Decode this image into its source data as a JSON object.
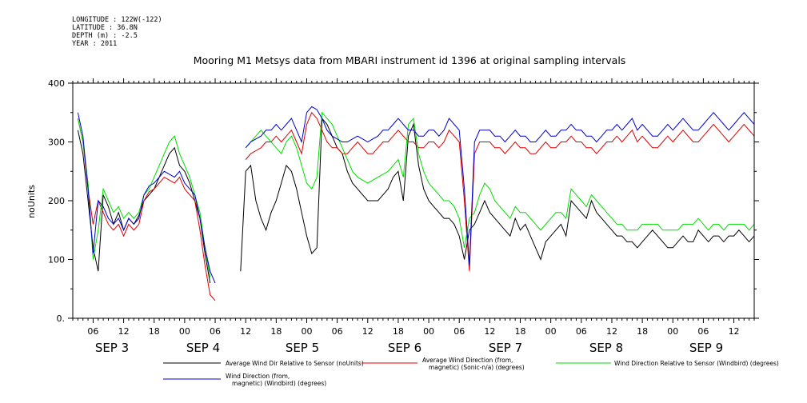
{
  "meta": {
    "longitude": "LONGITUDE : 122W(-122)",
    "latitude": "LATITUDE : 36.8N",
    "depth": "DEPTH (m) : -2.5",
    "year": "YEAR : 2011"
  },
  "chart_data": {
    "type": "line",
    "title": "Mooring M1 Metsys data from MBARI instrument id 1396 at original sampling intervals",
    "ylabel": "noUnits",
    "xlabel": "",
    "ylim": [
      0,
      400
    ],
    "yticks": [
      0,
      100,
      200,
      300,
      400
    ],
    "ytick_labels": [
      "0.",
      "100",
      "200",
      "300",
      "400"
    ],
    "xlim_hours": [
      2,
      136
    ],
    "x_hour_ticks": [
      "06",
      "12",
      "18",
      "00",
      "06",
      "12",
      "18",
      "00",
      "06",
      "12",
      "18",
      "00",
      "06",
      "12",
      "18",
      "00",
      "06",
      "12",
      "18",
      "00",
      "06",
      "12",
      "18",
      "00",
      "06",
      "12",
      "18"
    ],
    "x_day_labels": [
      {
        "label": "SEP  3",
        "hour": 12
      },
      {
        "label": "SEP  4",
        "hour": 36
      },
      {
        "label": "SEP  5",
        "hour": 60
      },
      {
        "label": "SEP  6",
        "hour": 84
      },
      {
        "label": "SEP  7",
        "hour": 108
      },
      {
        "label": "SEP  8",
        "hour": 132
      },
      {
        "label": "SEP  9",
        "hour": 156
      }
    ],
    "series": [
      {
        "name": "Average Wind Dir Relative to Sensor (noUnits)",
        "color": "#000000",
        "x": [
          3,
          4,
          5,
          6,
          7,
          8,
          9,
          10,
          11,
          12,
          13,
          14,
          15,
          16,
          17,
          18,
          19,
          20,
          21,
          22,
          23,
          24,
          25,
          26,
          27,
          28,
          29,
          30,
          31,
          32,
          33,
          34,
          35,
          36,
          37,
          38,
          39,
          40,
          41,
          42,
          43,
          44,
          45,
          46,
          47,
          48,
          49,
          50,
          51,
          52,
          53,
          54,
          55,
          56,
          57,
          58,
          59,
          60,
          61,
          62,
          63,
          64,
          65,
          66,
          67,
          68,
          69,
          70,
          71,
          72,
          73,
          74,
          75,
          76,
          77,
          78,
          79,
          80,
          81,
          82,
          83,
          84,
          85,
          86,
          87,
          88,
          89,
          90,
          91,
          92,
          93,
          94,
          95,
          96,
          97,
          98,
          99,
          100,
          101,
          102,
          103,
          104,
          105,
          106,
          107,
          108,
          109,
          110,
          111,
          112,
          113,
          114,
          115,
          116,
          117,
          118,
          119,
          120,
          121,
          122,
          123,
          124,
          125,
          126,
          127,
          128,
          129,
          130,
          131,
          132,
          133,
          134,
          135,
          136
        ],
        "y": [
          320,
          280,
          200,
          120,
          80,
          210,
          190,
          160,
          180,
          150,
          170,
          160,
          175,
          200,
          210,
          220,
          240,
          260,
          280,
          290,
          260,
          250,
          230,
          200,
          170,
          110,
          60,
          null,
          null,
          null,
          null,
          null,
          80,
          250,
          260,
          200,
          170,
          150,
          180,
          200,
          230,
          260,
          250,
          220,
          180,
          140,
          110,
          120,
          340,
          330,
          310,
          290,
          280,
          250,
          230,
          220,
          210,
          200,
          200,
          200,
          210,
          220,
          240,
          250,
          200,
          310,
          330,
          260,
          220,
          200,
          190,
          180,
          170,
          170,
          160,
          140,
          100,
          150,
          160,
          180,
          200,
          180,
          170,
          160,
          150,
          140,
          170,
          150,
          160,
          140,
          120,
          100,
          130,
          140,
          150,
          160,
          140,
          200,
          190,
          180,
          170,
          200,
          180,
          170,
          160,
          150,
          140,
          140,
          130,
          130,
          120,
          130,
          140,
          150,
          140,
          130,
          120,
          120,
          130,
          140,
          130,
          130,
          150,
          140,
          130,
          140,
          140,
          130,
          140,
          140,
          150,
          140,
          130,
          140
        ],
        "x2": [],
        "y2": []
      },
      {
        "name": "Average Wind Direction (from, magnetic) (Sonic-n/a) (degrees)",
        "color": "#dd0000",
        "x": [
          3,
          4,
          5,
          6,
          7,
          8,
          9,
          10,
          11,
          12,
          13,
          14,
          15,
          16,
          17,
          18,
          19,
          20,
          21,
          22,
          23,
          24,
          25,
          26,
          27,
          28,
          29,
          30,
          31,
          32,
          33,
          34,
          35,
          36,
          37,
          38,
          39,
          40,
          41,
          42,
          43,
          44,
          45,
          46,
          47,
          48,
          49,
          50,
          51,
          52,
          53,
          54,
          55,
          56,
          57,
          58,
          59,
          60,
          61,
          62,
          63,
          64,
          65,
          66,
          67,
          68,
          69,
          70,
          71,
          72,
          73,
          74,
          75,
          76,
          77,
          78,
          79,
          80,
          81,
          82,
          83,
          84,
          85,
          86,
          87,
          88,
          89,
          90,
          91,
          92,
          93,
          94,
          95,
          96,
          97,
          98,
          99,
          100,
          101,
          102,
          103,
          104,
          105,
          106,
          107,
          108,
          109,
          110,
          111,
          112,
          113,
          114,
          115,
          116,
          117,
          118,
          119,
          120,
          121,
          122,
          123,
          124,
          125,
          126,
          127,
          128,
          129,
          130,
          131,
          132,
          133,
          134,
          135,
          136
        ],
        "y": [
          340,
          300,
          220,
          160,
          200,
          180,
          160,
          150,
          160,
          140,
          160,
          150,
          160,
          200,
          215,
          220,
          230,
          240,
          235,
          230,
          240,
          220,
          210,
          200,
          150,
          90,
          40,
          30,
          null,
          null,
          null,
          null,
          null,
          270,
          280,
          285,
          290,
          300,
          300,
          310,
          300,
          310,
          320,
          300,
          280,
          330,
          350,
          340,
          320,
          300,
          290,
          290,
          280,
          280,
          290,
          300,
          290,
          280,
          280,
          290,
          300,
          300,
          310,
          320,
          310,
          300,
          300,
          290,
          290,
          300,
          300,
          290,
          300,
          320,
          310,
          300,
          200,
          80,
          280,
          300,
          300,
          300,
          290,
          290,
          280,
          290,
          300,
          290,
          290,
          280,
          280,
          290,
          300,
          290,
          290,
          300,
          300,
          310,
          300,
          300,
          290,
          290,
          280,
          290,
          300,
          300,
          310,
          300,
          310,
          320,
          300,
          310,
          300,
          290,
          290,
          300,
          310,
          300,
          310,
          320,
          310,
          300,
          300,
          310,
          320,
          330,
          320,
          310,
          300,
          310,
          320,
          330,
          320,
          310
        ],
        "x2": [],
        "y2": []
      },
      {
        "name": "Wind Direction Relative to Sensor (Windbird) (degrees)",
        "color": "#00dd00",
        "x": [
          3,
          4,
          5,
          6,
          7,
          8,
          9,
          10,
          11,
          12,
          13,
          14,
          15,
          16,
          17,
          18,
          19,
          20,
          21,
          22,
          23,
          24,
          25,
          26,
          27,
          28,
          29,
          30,
          31,
          32,
          33,
          34,
          35,
          36,
          37,
          38,
          39,
          40,
          41,
          42,
          43,
          44,
          45,
          46,
          47,
          48,
          49,
          50,
          51,
          52,
          53,
          54,
          55,
          56,
          57,
          58,
          59,
          60,
          61,
          62,
          63,
          64,
          65,
          66,
          67,
          68,
          69,
          70,
          71,
          72,
          73,
          74,
          75,
          76,
          77,
          78,
          79,
          80,
          81,
          82,
          83,
          84,
          85,
          86,
          87,
          88,
          89,
          90,
          91,
          92,
          93,
          94,
          95,
          96,
          97,
          98,
          99,
          100,
          101,
          102,
          103,
          104,
          105,
          106,
          107,
          108,
          109,
          110,
          111,
          112,
          113,
          114,
          115,
          116,
          117,
          118,
          119,
          120,
          121,
          122,
          123,
          124,
          125,
          126,
          127,
          128,
          129,
          130,
          131,
          132,
          133,
          134,
          135,
          136
        ],
        "y": [
          340,
          300,
          230,
          100,
          150,
          220,
          200,
          180,
          190,
          170,
          180,
          170,
          180,
          210,
          220,
          240,
          260,
          280,
          300,
          310,
          280,
          260,
          240,
          210,
          180,
          120,
          70,
          null,
          null,
          null,
          null,
          null,
          null,
          290,
          300,
          310,
          320,
          310,
          300,
          290,
          280,
          300,
          310,
          290,
          260,
          230,
          220,
          240,
          350,
          340,
          330,
          310,
          290,
          270,
          250,
          240,
          235,
          230,
          235,
          240,
          245,
          250,
          260,
          270,
          240,
          330,
          340,
          280,
          250,
          230,
          220,
          210,
          200,
          200,
          190,
          170,
          120,
          170,
          180,
          210,
          230,
          220,
          200,
          190,
          180,
          170,
          190,
          180,
          180,
          170,
          160,
          150,
          160,
          170,
          180,
          180,
          170,
          220,
          210,
          200,
          190,
          210,
          200,
          190,
          180,
          170,
          160,
          160,
          150,
          150,
          150,
          160,
          160,
          160,
          160,
          150,
          150,
          150,
          150,
          160,
          160,
          160,
          170,
          160,
          150,
          160,
          160,
          150,
          160,
          160,
          160,
          160,
          150,
          160
        ],
        "x2": [],
        "y2": []
      },
      {
        "name": "Wind Direction (from, magnetic) (Windbird) (degrees)",
        "color": "#0000cc",
        "x": [
          3,
          4,
          5,
          6,
          7,
          8,
          9,
          10,
          11,
          12,
          13,
          14,
          15,
          16,
          17,
          18,
          19,
          20,
          21,
          22,
          23,
          24,
          25,
          26,
          27,
          28,
          29,
          30,
          31,
          32,
          33,
          34,
          35,
          36,
          37,
          38,
          39,
          40,
          41,
          42,
          43,
          44,
          45,
          46,
          47,
          48,
          49,
          50,
          51,
          52,
          53,
          54,
          55,
          56,
          57,
          58,
          59,
          60,
          61,
          62,
          63,
          64,
          65,
          66,
          67,
          68,
          69,
          70,
          71,
          72,
          73,
          74,
          75,
          76,
          77,
          78,
          79,
          80,
          81,
          82,
          83,
          84,
          85,
          86,
          87,
          88,
          89,
          90,
          91,
          92,
          93,
          94,
          95,
          96,
          97,
          98,
          99,
          100,
          101,
          102,
          103,
          104,
          105,
          106,
          107,
          108,
          109,
          110,
          111,
          112,
          113,
          114,
          115,
          116,
          117,
          118,
          119,
          120,
          121,
          122,
          123,
          124,
          125,
          126,
          127,
          128,
          129,
          130,
          131,
          132,
          133,
          134,
          135,
          136
        ],
        "y": [
          350,
          310,
          220,
          110,
          200,
          190,
          170,
          160,
          170,
          150,
          170,
          160,
          170,
          210,
          225,
          230,
          240,
          250,
          245,
          240,
          250,
          230,
          220,
          210,
          170,
          120,
          80,
          60,
          null,
          null,
          null,
          null,
          null,
          290,
          300,
          305,
          310,
          320,
          320,
          330,
          320,
          330,
          340,
          320,
          300,
          350,
          360,
          355,
          340,
          320,
          310,
          305,
          300,
          300,
          305,
          310,
          305,
          300,
          305,
          310,
          320,
          320,
          330,
          340,
          330,
          320,
          320,
          310,
          310,
          320,
          320,
          310,
          320,
          340,
          330,
          320,
          220,
          90,
          300,
          320,
          320,
          320,
          310,
          310,
          300,
          310,
          320,
          310,
          310,
          300,
          300,
          310,
          320,
          310,
          310,
          320,
          320,
          330,
          320,
          320,
          310,
          310,
          300,
          310,
          320,
          320,
          330,
          320,
          330,
          340,
          320,
          330,
          320,
          310,
          310,
          320,
          330,
          320,
          330,
          340,
          330,
          320,
          320,
          330,
          340,
          350,
          340,
          330,
          320,
          330,
          340,
          350,
          340,
          330
        ],
        "x2": [],
        "y2": []
      }
    ],
    "legend": {
      "placement": "bottom",
      "entries": [
        {
          "label": "Average Wind Dir Relative to Sensor (noUnits)",
          "color": "#000000"
        },
        {
          "label": "Average Wind Direction (from,",
          "label2": "magnetic) (Sonic-n/a) (degrees)",
          "color": "#dd0000"
        },
        {
          "label": "Wind Direction Relative to Sensor (Windbird) (degrees)",
          "color": "#00dd00"
        },
        {
          "label": "Wind Direction (from,",
          "label2": "magnetic) (Windbird) (degrees)",
          "color": "#0000cc"
        }
      ]
    }
  }
}
